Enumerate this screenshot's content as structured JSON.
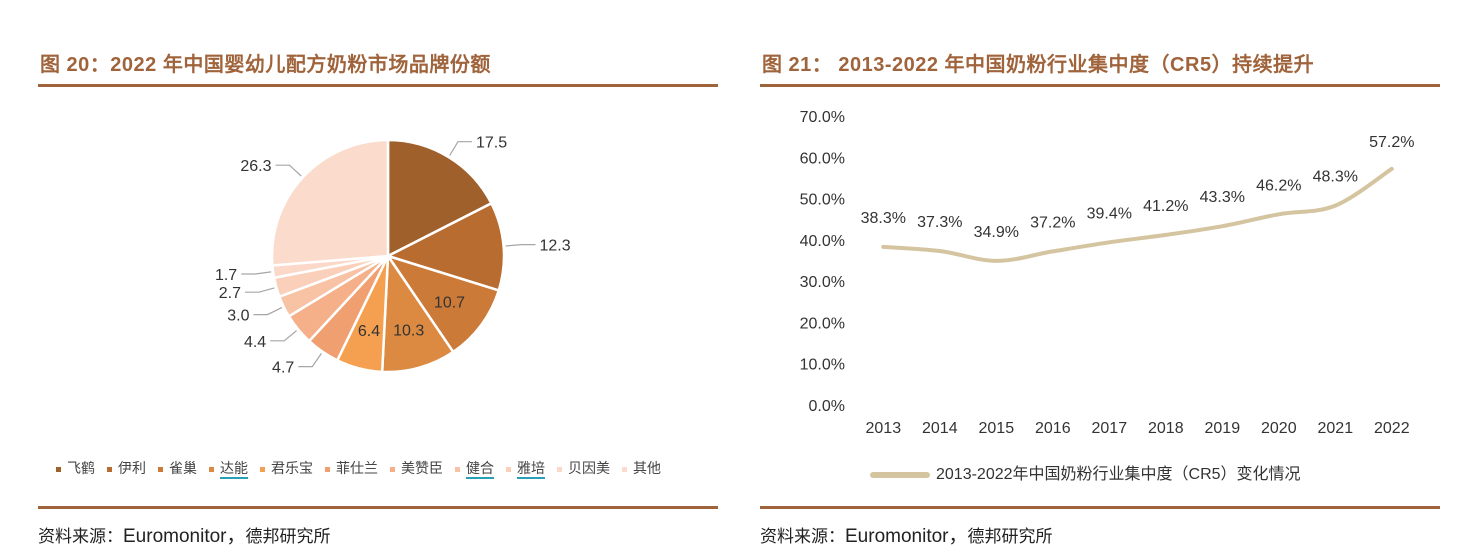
{
  "left": {
    "title": "图 20：2022 年中国婴幼儿配方奶粉市场品牌份额",
    "source_prefix": "资料来源：",
    "source_brand": "Euromonitor，",
    "source_suffix": "德邦研究所"
  },
  "right": {
    "title": "图 21： 2013-2022 年中国奶粉行业集中度（CR5）持续提升",
    "source_prefix": "资料来源：",
    "source_brand": "Euromonitor，",
    "source_suffix": "德邦研究所",
    "legend_label": "2013-2022年中国奶粉行业集中度（CR5）变化情况"
  },
  "chart_data": [
    {
      "type": "pie",
      "categories": [
        "飞鹤",
        "伊利",
        "雀巢",
        "达能",
        "君乐宝",
        "菲仕兰",
        "美赞臣",
        "健合",
        "雅培",
        "贝因美",
        "其他"
      ],
      "values": [
        17.5,
        12.3,
        10.7,
        10.3,
        6.4,
        4.7,
        4.4,
        3.0,
        2.7,
        1.7,
        26.3
      ],
      "value_labels": [
        "17.5",
        "12.3",
        "10.7",
        "10.3",
        "6.4",
        "4.7",
        "4.4",
        "3.0",
        "2.7",
        "1.7",
        "26.3"
      ],
      "colors": [
        "#a0602c",
        "#b86c30",
        "#cc7a38",
        "#dc8a42",
        "#f5a050",
        "#f0a070",
        "#f5b08a",
        "#f8c2a5",
        "#fad0bb",
        "#fbd8c8",
        "#fbdccc"
      ],
      "legend_underlined": [
        "达能",
        "健合",
        "雅培"
      ],
      "legend_position": "bottom"
    },
    {
      "type": "line",
      "x": [
        "2013",
        "2014",
        "2015",
        "2016",
        "2017",
        "2018",
        "2019",
        "2020",
        "2021",
        "2022"
      ],
      "series": [
        {
          "name": "2013-2022年中国奶粉行业集中度（CR5）变化情况",
          "values": [
            38.3,
            37.3,
            34.9,
            37.2,
            39.4,
            41.2,
            43.3,
            46.2,
            48.3,
            57.2
          ],
          "labels": [
            "38.3%",
            "37.3%",
            "34.9%",
            "37.2%",
            "39.4%",
            "41.2%",
            "43.3%",
            "46.2%",
            "48.3%",
            "57.2%"
          ],
          "color": "#d5c4a0"
        }
      ],
      "ylim": [
        0,
        70
      ],
      "yticks": [
        "0.0%",
        "10.0%",
        "20.0%",
        "30.0%",
        "40.0%",
        "50.0%",
        "60.0%",
        "70.0%"
      ],
      "grid": false,
      "legend_position": "bottom"
    }
  ]
}
